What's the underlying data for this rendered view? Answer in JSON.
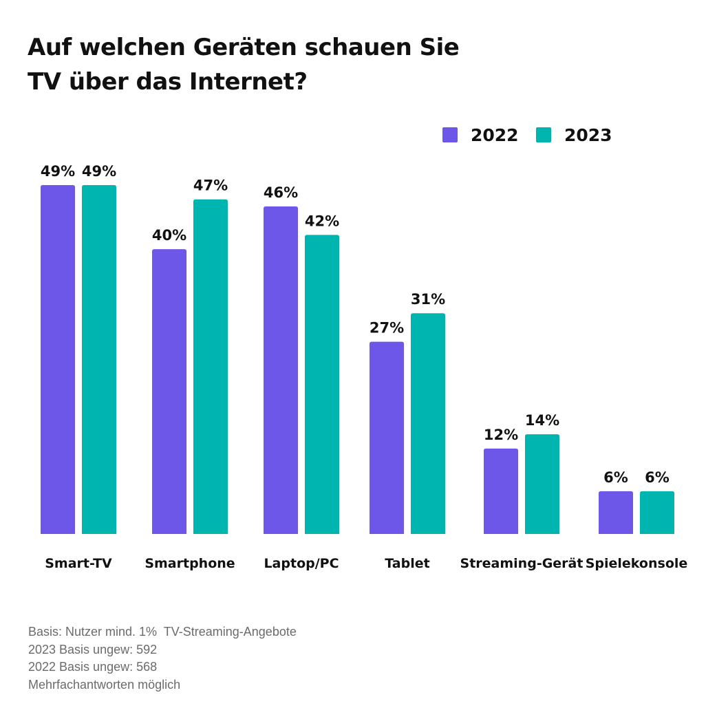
{
  "title_lines": [
    "Auf welchen Geräten schauen Sie",
    "TV über das Internet?"
  ],
  "chart_data": {
    "type": "bar",
    "title": "Auf welchen Geräten schauen Sie TV über das Internet?",
    "categories": [
      "Smart-TV",
      "Smartphone",
      "Laptop/PC",
      "Tablet",
      "Streaming-Gerät",
      "Spielekonsole"
    ],
    "series": [
      {
        "name": "2022",
        "color": "#6c57e8",
        "values": [
          49,
          40,
          46,
          27,
          12,
          6
        ]
      },
      {
        "name": "2023",
        "color": "#00b5b0",
        "values": [
          49,
          47,
          42,
          31,
          14,
          6
        ]
      }
    ],
    "value_suffix": "%",
    "ylim": [
      0,
      49
    ],
    "grid": false,
    "legend_position": "top-right"
  },
  "footnote": [
    "Basis: Nutzer mind. 1%  TV-Streaming-Angebote",
    "2023 Basis ungew: 592",
    "2022 Basis ungew: 568",
    "Mehrfachantworten möglich"
  ]
}
